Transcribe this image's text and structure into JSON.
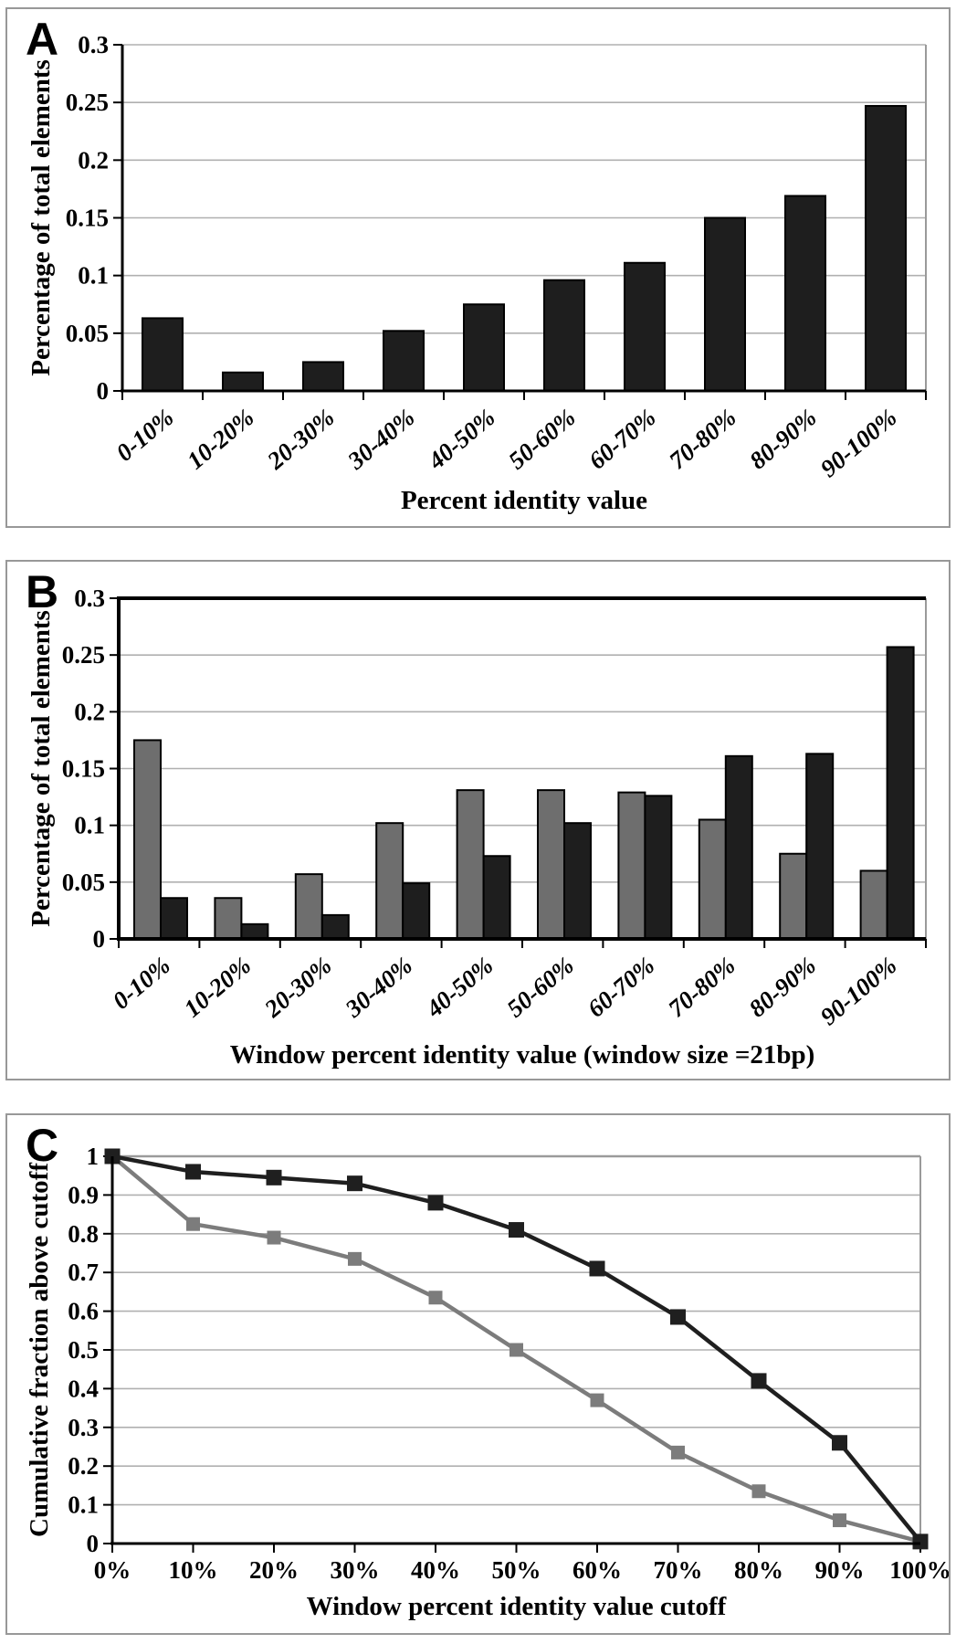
{
  "colors": {
    "background": "#ffffff",
    "panel_border": "#989898",
    "gridline": "#b0b0b0",
    "frame": "#9a9a9a",
    "axis": "#000000",
    "text": "#000000",
    "bar_dark": "#1e1e1e",
    "bar_gray": "#6e6e6e",
    "line_dark": "#1f1f1f",
    "line_gray": "#7c7c7c"
  },
  "chart_data": [
    {
      "panel": "A",
      "type": "bar",
      "title": "",
      "xlabel": "Percent identity value",
      "ylabel": "Percentage of total elements",
      "categories": [
        "0-10%",
        "10-20%",
        "20-30%",
        "30-40%",
        "40-50%",
        "50-60%",
        "60-70%",
        "70-80%",
        "80-90%",
        "90-100%"
      ],
      "series": [
        {
          "name": "dark",
          "color": "#1e1e1e",
          "values": [
            0.063,
            0.016,
            0.025,
            0.052,
            0.075,
            0.096,
            0.111,
            0.15,
            0.169,
            0.247
          ]
        }
      ],
      "ylim": [
        0,
        0.3
      ],
      "y_ticks": [
        "0",
        "0.05",
        "0.1",
        "0.15",
        "0.2",
        "0.25",
        "0.3"
      ],
      "grid": true,
      "legend": "none"
    },
    {
      "panel": "B",
      "type": "bar",
      "title": "",
      "xlabel": "Window percent identity value (window size =21bp)",
      "ylabel": "Percentage of total elements",
      "categories": [
        "0-10%",
        "10-20%",
        "20-30%",
        "30-40%",
        "40-50%",
        "50-60%",
        "60-70%",
        "70-80%",
        "80-90%",
        "90-100%"
      ],
      "series": [
        {
          "name": "gray",
          "color": "#6e6e6e",
          "values": [
            0.175,
            0.036,
            0.057,
            0.102,
            0.131,
            0.131,
            0.129,
            0.105,
            0.075,
            0.06
          ]
        },
        {
          "name": "dark",
          "color": "#1e1e1e",
          "values": [
            0.036,
            0.013,
            0.021,
            0.049,
            0.073,
            0.102,
            0.126,
            0.161,
            0.163,
            0.257
          ]
        }
      ],
      "ylim": [
        0,
        0.3
      ],
      "y_ticks": [
        "0",
        "0.05",
        "0.1",
        "0.15",
        "0.2",
        "0.25",
        "0.3"
      ],
      "grid": true,
      "legend": "none"
    },
    {
      "panel": "C",
      "type": "line",
      "title": "",
      "xlabel": "Window percent identity value cutoff",
      "ylabel": "Cumulative fraction above cutoff",
      "x": [
        "0%",
        "10%",
        "20%",
        "30%",
        "40%",
        "50%",
        "60%",
        "70%",
        "80%",
        "90%",
        "100%"
      ],
      "series": [
        {
          "name": "gray",
          "color": "#7c7c7c",
          "marker": "square",
          "values": [
            1,
            0.825,
            0.79,
            0.735,
            0.635,
            0.5,
            0.37,
            0.235,
            0.135,
            0.06,
            0.005
          ]
        },
        {
          "name": "dark",
          "color": "#1f1f1f",
          "marker": "square",
          "values": [
            1,
            0.96,
            0.945,
            0.93,
            0.88,
            0.81,
            0.71,
            0.585,
            0.42,
            0.26,
            0.005
          ]
        }
      ],
      "ylim": [
        0,
        1
      ],
      "y_ticks": [
        "0",
        "0.1",
        "0.2",
        "0.3",
        "0.4",
        "0.5",
        "0.6",
        "0.7",
        "0.8",
        "0.9",
        "1"
      ],
      "grid": true,
      "legend": "none"
    }
  ]
}
